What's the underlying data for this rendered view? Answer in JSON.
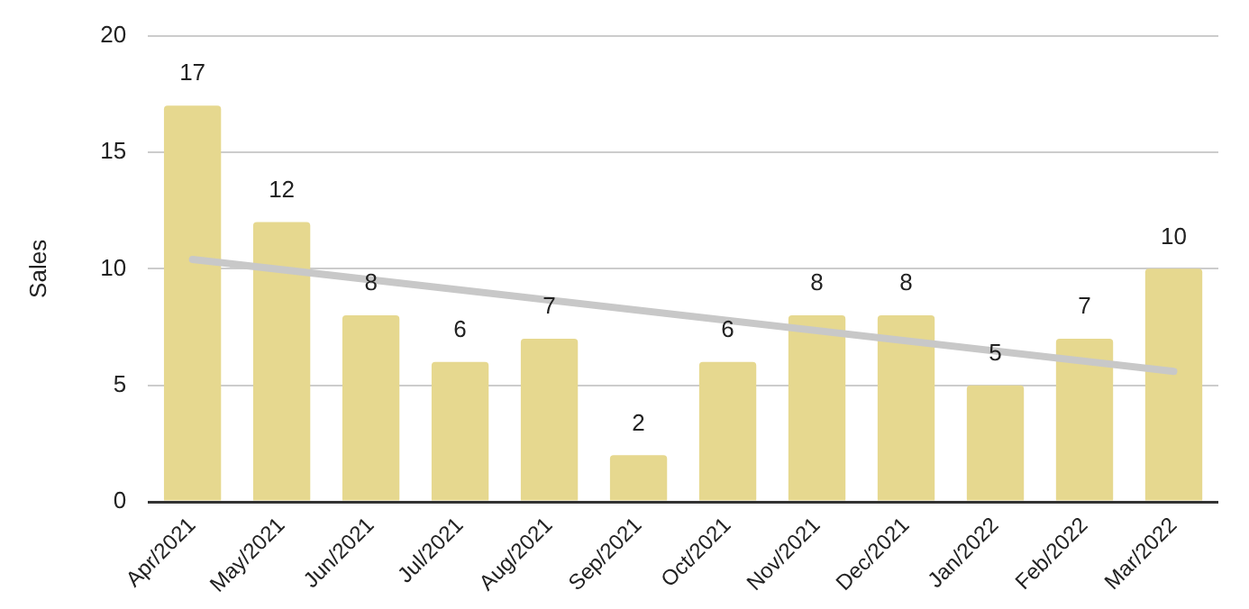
{
  "chart_data": {
    "type": "bar",
    "ylabel": "Sales",
    "categories": [
      "Apr/2021",
      "May/2021",
      "Jun/2021",
      "Jul/2021",
      "Aug/2021",
      "Sep/2021",
      "Oct/2021",
      "Nov/2021",
      "Dec/2021",
      "Jan/2022",
      "Feb/2022",
      "Mar/2022"
    ],
    "series": [
      {
        "color": "#e6d88f",
        "values": [
          17,
          12,
          8,
          6,
          7,
          2,
          6,
          8,
          8,
          5,
          7,
          10
        ],
        "value_labels": [
          "17",
          "12",
          "8",
          "6",
          "7",
          "2",
          "6",
          "8",
          "8",
          "5",
          "7",
          "10"
        ]
      },
      {
        "type": "line",
        "color": "#c8c8c8",
        "x": [
          "Apr/2021",
          "Mar/2022"
        ],
        "values": [
          10.4,
          5.6
        ]
      }
    ],
    "ylim": [
      0,
      20
    ],
    "yticks": [
      0,
      5,
      10,
      15,
      20
    ],
    "grid": "y",
    "legend": false,
    "marker": "none"
  }
}
